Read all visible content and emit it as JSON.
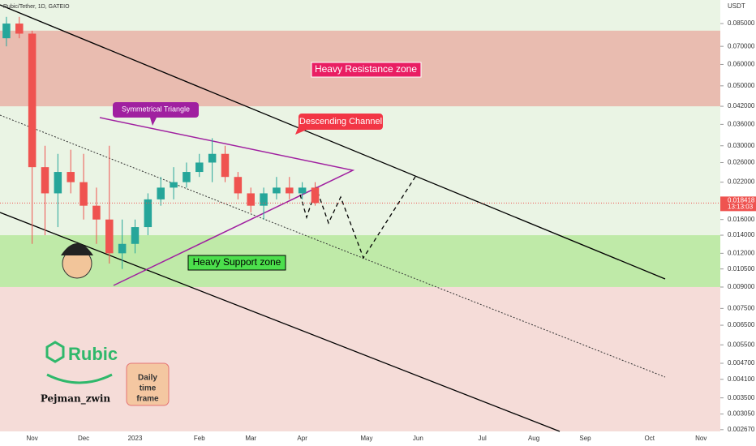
{
  "chart_data": {
    "type": "candlestick",
    "title": "Rubic/Tether, 1D, GATEIO",
    "y_axis_label": "USDT",
    "log_scale": true,
    "grid": false,
    "up_color": "#26a69a",
    "down_color": "#ef5350",
    "categories": [
      null,
      null,
      "Nov",
      null,
      null,
      null,
      "Dec",
      null,
      null,
      null,
      "2023",
      null,
      null,
      null,
      null,
      "Feb",
      null,
      null,
      null,
      "Mar",
      null,
      null,
      null,
      "Apr",
      null,
      null,
      null,
      null,
      "May",
      null,
      null,
      null,
      "Jun",
      null,
      null,
      null,
      null,
      "Jul",
      null,
      null,
      null,
      "Aug",
      null,
      null,
      null,
      "Sep",
      null,
      null,
      null,
      null,
      "Oct",
      null,
      null,
      null,
      "Nov",
      null
    ],
    "open": [
      0.075,
      0.085,
      0.078,
      0.025,
      0.02,
      0.024,
      0.022,
      0.018,
      0.016,
      0.012,
      0.013,
      0.015,
      0.019,
      0.021,
      0.022,
      0.024,
      0.026,
      0.028,
      0.023,
      0.02,
      0.018,
      0.02,
      0.021,
      0.02,
      0.021,
      null,
      null,
      null,
      null,
      null,
      null,
      null,
      null,
      null,
      null,
      null,
      null,
      null,
      null,
      null,
      null,
      null,
      null,
      null,
      null,
      null,
      null,
      null,
      null,
      null,
      null,
      null,
      null,
      null,
      null,
      null
    ],
    "high": [
      0.09,
      0.09,
      0.08,
      0.03,
      0.028,
      0.029,
      0.028,
      0.021,
      0.03,
      0.016,
      0.016,
      0.02,
      0.023,
      0.025,
      0.026,
      0.028,
      0.032,
      0.03,
      0.024,
      0.021,
      0.021,
      0.023,
      0.023,
      0.022,
      0.022,
      null,
      null,
      null,
      null,
      null,
      null,
      null,
      null,
      null,
      null,
      null,
      null,
      null,
      null,
      null,
      null,
      null,
      null,
      null,
      null,
      null,
      null,
      null,
      null,
      null,
      null,
      null,
      null,
      null,
      null,
      null
    ],
    "low": [
      0.07,
      0.075,
      0.013,
      0.014,
      0.015,
      0.02,
      0.016,
      0.013,
      0.011,
      0.0105,
      0.012,
      0.014,
      0.018,
      0.019,
      0.021,
      0.023,
      0.022,
      0.022,
      0.019,
      0.017,
      0.016,
      0.019,
      0.019,
      0.019,
      0.018,
      null,
      null,
      null,
      null,
      null,
      null,
      null,
      null,
      null,
      null,
      null,
      null,
      null,
      null,
      null,
      null,
      null,
      null,
      null,
      null,
      null,
      null,
      null,
      null,
      null,
      null,
      null,
      null,
      null,
      null,
      null
    ],
    "close": [
      0.085,
      0.078,
      0.025,
      0.02,
      0.024,
      0.022,
      0.018,
      0.016,
      0.012,
      0.013,
      0.015,
      0.019,
      0.021,
      0.022,
      0.024,
      0.026,
      0.028,
      0.023,
      0.02,
      0.018,
      0.02,
      0.021,
      0.02,
      0.021,
      0.018418,
      null,
      null,
      null,
      null,
      null,
      null,
      null,
      null,
      null,
      null,
      null,
      null,
      null,
      null,
      null,
      null,
      null,
      null,
      null,
      null,
      null,
      null,
      null,
      null,
      null,
      null,
      null,
      null,
      null,
      null,
      null
    ],
    "last_price": 0.018418,
    "countdown": "13:13:03",
    "ylim": [
      0.00263,
      0.1039
    ],
    "yticks": [
      {
        "value": 0.085,
        "label": "0.085000"
      },
      {
        "value": 0.07,
        "label": "0.070000"
      },
      {
        "value": 0.06,
        "label": "0.060000"
      },
      {
        "value": 0.05,
        "label": "0.050000"
      },
      {
        "value": 0.042,
        "label": "0.042000"
      },
      {
        "value": 0.036,
        "label": "0.036000"
      },
      {
        "value": 0.03,
        "label": "0.030000"
      },
      {
        "value": 0.026,
        "label": "0.026000"
      },
      {
        "value": 0.022,
        "label": "0.022000"
      },
      {
        "value": 0.016,
        "label": "0.016000"
      },
      {
        "value": 0.014,
        "label": "0.014000"
      },
      {
        "value": 0.012,
        "label": "0.012000"
      },
      {
        "value": 0.0105,
        "label": "0.010500"
      },
      {
        "value": 0.009,
        "label": "0.009000"
      },
      {
        "value": 0.0075,
        "label": "0.007500"
      },
      {
        "value": 0.0065,
        "label": "0.006500"
      },
      {
        "value": 0.0055,
        "label": "0.005500"
      },
      {
        "value": 0.0047,
        "label": "0.004700"
      },
      {
        "value": 0.0041,
        "label": "0.004100"
      },
      {
        "value": 0.0035,
        "label": "0.003500"
      },
      {
        "value": 0.00305,
        "label": "0.003050"
      },
      {
        "value": 0.00267,
        "label": "0.002670"
      }
    ],
    "resistance_zone": [
      0.042,
      0.08
    ],
    "support_zone": [
      0.009,
      0.014
    ],
    "annotations": {
      "resistance": "Heavy Resistance zone",
      "support": "Heavy Support zone",
      "triangle": "Symmetrical Triangle",
      "channel": "Descending Channel"
    },
    "logo": {
      "brand": "Rubic",
      "author": "Pejman_zwin",
      "timeframe": [
        "Daily",
        "time",
        "frame"
      ]
    }
  }
}
